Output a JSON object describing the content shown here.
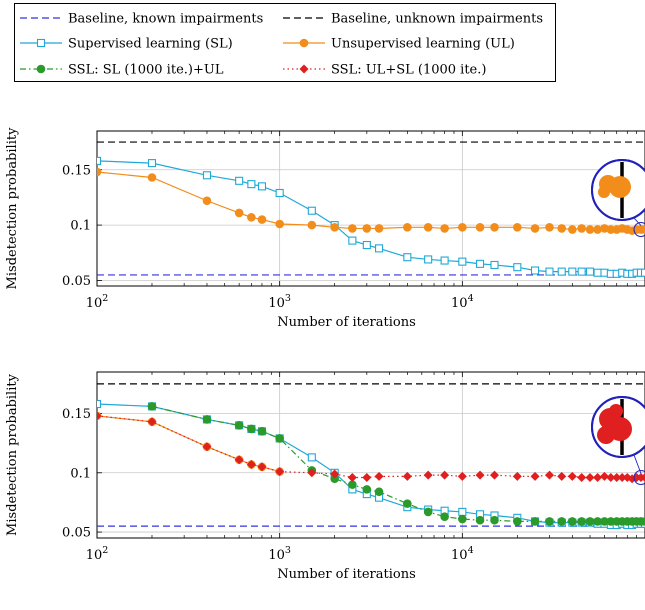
{
  "legend": {
    "items": [
      {
        "key": "baseline_known",
        "label": "Baseline, known impairments",
        "color": "#3333dd",
        "style": "dashed",
        "marker": "none"
      },
      {
        "key": "baseline_unknown",
        "label": "Baseline, unknown impairments",
        "color": "#000000",
        "style": "dashed",
        "marker": "none"
      },
      {
        "key": "sl",
        "label": "Supervised learning (SL)",
        "color": "#1fa8d8",
        "style": "solid",
        "marker": "square-open"
      },
      {
        "key": "ul",
        "label": "Unsupervised learning (UL)",
        "color": "#f28c1a",
        "style": "solid",
        "marker": "circle-filled"
      },
      {
        "key": "ssl_slul",
        "label": "SSL: SL (1000 ite.)+UL",
        "color": "#2a9a2a",
        "style": "dashdot",
        "marker": "circle-filled"
      },
      {
        "key": "ssl_ulsl",
        "label": "SSL: UL+SL (1000 ite.)",
        "color": "#e02020",
        "style": "dotted",
        "marker": "diamond-filled"
      }
    ]
  },
  "chart_data": [
    {
      "type": "line",
      "title": "",
      "xlabel": "Number of iterations",
      "ylabel": "Misdetection probability",
      "xscale": "log",
      "xlim": [
        100,
        100000
      ],
      "ylim": [
        0.045,
        0.185
      ],
      "xticks": [
        {
          "value": 100,
          "base": "10",
          "exp": "2"
        },
        {
          "value": 1000,
          "base": "10",
          "exp": "3"
        },
        {
          "value": 10000,
          "base": "10",
          "exp": "4"
        }
      ],
      "yticks": [
        {
          "value": 0.05,
          "label": "0.05"
        },
        {
          "value": 0.1,
          "label": "0.1"
        },
        {
          "value": 0.15,
          "label": "0.15"
        }
      ],
      "grid": true,
      "series": [
        {
          "key": "baseline_known",
          "hline": 0.055
        },
        {
          "key": "baseline_unknown",
          "hline": 0.175
        },
        {
          "key": "sl",
          "x": [
            100,
            200,
            400,
            600,
            700,
            800,
            1000,
            1500,
            2000,
            2500,
            3000,
            3500,
            5000,
            6500,
            8000,
            10000,
            12500,
            15000,
            20000,
            25000,
            30000,
            35000,
            40000,
            45000,
            50000,
            55000,
            60000,
            65000,
            70000,
            75000,
            80000,
            85000,
            90000,
            95000,
            100000
          ],
          "y": [
            0.158,
            0.156,
            0.145,
            0.14,
            0.137,
            0.135,
            0.129,
            0.113,
            0.1,
            0.086,
            0.082,
            0.079,
            0.071,
            0.069,
            0.068,
            0.067,
            0.065,
            0.064,
            0.062,
            0.059,
            0.058,
            0.058,
            0.058,
            0.058,
            0.058,
            0.057,
            0.057,
            0.056,
            0.056,
            0.057,
            0.056,
            0.056,
            0.057,
            0.057,
            0.057
          ]
        },
        {
          "key": "ul",
          "x": [
            100,
            200,
            400,
            600,
            700,
            800,
            1000,
            1500,
            2000,
            2500,
            3000,
            3500,
            5000,
            6500,
            8000,
            10000,
            12500,
            15000,
            20000,
            25000,
            30000,
            35000,
            40000,
            45000,
            50000,
            55000,
            60000,
            65000,
            70000,
            75000,
            80000,
            85000,
            90000,
            95000,
            100000
          ],
          "y": [
            0.148,
            0.143,
            0.122,
            0.111,
            0.107,
            0.105,
            0.101,
            0.1,
            0.098,
            0.097,
            0.097,
            0.097,
            0.098,
            0.098,
            0.097,
            0.098,
            0.098,
            0.098,
            0.098,
            0.097,
            0.098,
            0.097,
            0.096,
            0.097,
            0.096,
            0.096,
            0.097,
            0.096,
            0.096,
            0.097,
            0.096,
            0.095,
            0.096,
            0.096,
            0.096
          ]
        }
      ]
    },
    {
      "type": "line",
      "title": "",
      "xlabel": "Number of iterations",
      "ylabel": "Misdetection probability",
      "xscale": "log",
      "xlim": [
        100,
        100000
      ],
      "ylim": [
        0.045,
        0.185
      ],
      "xticks": [
        {
          "value": 100,
          "base": "10",
          "exp": "2"
        },
        {
          "value": 1000,
          "base": "10",
          "exp": "3"
        },
        {
          "value": 10000,
          "base": "10",
          "exp": "4"
        }
      ],
      "yticks": [
        {
          "value": 0.05,
          "label": "0.05"
        },
        {
          "value": 0.1,
          "label": "0.1"
        },
        {
          "value": 0.15,
          "label": "0.15"
        }
      ],
      "grid": true,
      "series": [
        {
          "key": "baseline_known",
          "hline": 0.055
        },
        {
          "key": "baseline_unknown",
          "hline": 0.175
        },
        {
          "key": "sl",
          "x": [
            100,
            200,
            400,
            600,
            700,
            800,
            1000,
            1500,
            2000,
            2500,
            3000,
            3500,
            5000,
            6500,
            8000,
            10000,
            12500,
            15000,
            20000,
            25000,
            30000,
            35000,
            40000,
            45000,
            50000,
            55000,
            60000,
            65000,
            70000,
            75000,
            80000,
            85000,
            90000,
            95000,
            100000
          ],
          "y": [
            0.158,
            0.156,
            0.145,
            0.14,
            0.137,
            0.135,
            0.129,
            0.113,
            0.1,
            0.086,
            0.082,
            0.079,
            0.071,
            0.069,
            0.068,
            0.067,
            0.065,
            0.064,
            0.062,
            0.059,
            0.058,
            0.058,
            0.058,
            0.058,
            0.058,
            0.057,
            0.057,
            0.056,
            0.056,
            0.057,
            0.056,
            0.056,
            0.057,
            0.057,
            0.057
          ]
        },
        {
          "key": "ul",
          "x": [
            100,
            200,
            400,
            600,
            700,
            800,
            1000
          ],
          "y": [
            0.148,
            0.143,
            0.122,
            0.111,
            0.107,
            0.105,
            0.101
          ]
        },
        {
          "key": "ssl_slul",
          "x": [
            200,
            400,
            600,
            700,
            800,
            1000,
            1500,
            2000,
            2500,
            3000,
            3500,
            5000,
            6500,
            8000,
            10000,
            12500,
            15000,
            20000,
            25000,
            30000,
            35000,
            40000,
            45000,
            50000,
            55000,
            60000,
            65000,
            70000,
            75000,
            80000,
            85000,
            90000,
            95000,
            100000
          ],
          "y": [
            0.156,
            0.145,
            0.14,
            0.137,
            0.135,
            0.129,
            0.102,
            0.095,
            0.09,
            0.086,
            0.084,
            0.074,
            0.067,
            0.063,
            0.061,
            0.06,
            0.06,
            0.059,
            0.059,
            0.059,
            0.059,
            0.059,
            0.059,
            0.059,
            0.059,
            0.059,
            0.059,
            0.059,
            0.059,
            0.059,
            0.059,
            0.059,
            0.059,
            0.059
          ]
        },
        {
          "key": "ssl_ulsl",
          "x": [
            100,
            200,
            400,
            600,
            700,
            800,
            1000,
            1500,
            2000,
            2500,
            3000,
            3500,
            5000,
            6500,
            8000,
            10000,
            12500,
            15000,
            20000,
            25000,
            30000,
            35000,
            40000,
            45000,
            50000,
            55000,
            60000,
            65000,
            70000,
            75000,
            80000,
            85000,
            90000,
            95000,
            100000
          ],
          "y": [
            0.148,
            0.143,
            0.122,
            0.111,
            0.107,
            0.105,
            0.101,
            0.1,
            0.099,
            0.096,
            0.096,
            0.097,
            0.097,
            0.098,
            0.098,
            0.097,
            0.098,
            0.098,
            0.097,
            0.097,
            0.098,
            0.097,
            0.097,
            0.096,
            0.096,
            0.096,
            0.097,
            0.096,
            0.096,
            0.096,
            0.096,
            0.095,
            0.096,
            0.096,
            0.096
          ]
        }
      ]
    }
  ]
}
